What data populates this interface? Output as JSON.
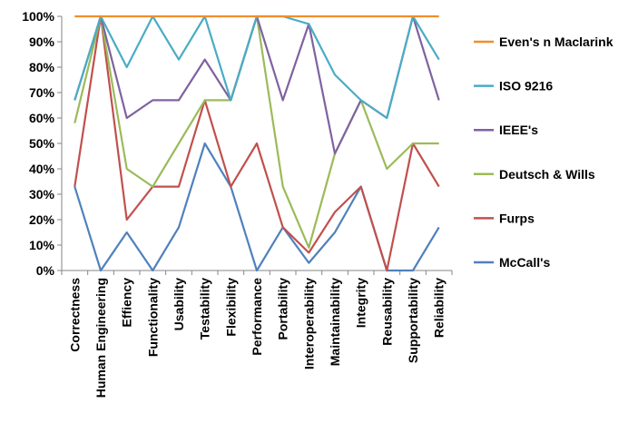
{
  "chart_data": {
    "type": "line",
    "categories": [
      "Correctness",
      "Human Engineering",
      "Effiency",
      "Functionality",
      "Usability",
      "Testability",
      "Flexibility",
      "Performance",
      "Portability",
      "Interoperability",
      "Maintainability",
      "Integrity",
      "Reusability",
      "Supportability",
      "Reliability"
    ],
    "ylim": [
      0,
      100
    ],
    "yticks": [
      "0%",
      "10%",
      "20%",
      "30%",
      "40%",
      "50%",
      "60%",
      "70%",
      "80%",
      "90%",
      "100%"
    ],
    "grid": false,
    "legend_position": "right",
    "series": [
      {
        "name": "Even's n Maclarink",
        "color": "#F28E2B",
        "values": [
          100,
          100,
          100,
          100,
          100,
          100,
          100,
          100,
          100,
          100,
          100,
          100,
          100,
          100,
          100
        ]
      },
      {
        "name": "ISO 9216",
        "color": "#4AACC5",
        "values": [
          67,
          100,
          80,
          100,
          83,
          100,
          67,
          100,
          100,
          97,
          77,
          67,
          60,
          100,
          83
        ]
      },
      {
        "name": "IEEE's",
        "color": "#7F62A0",
        "values": [
          67,
          100,
          60,
          67,
          67,
          83,
          67,
          100,
          67,
          97,
          46,
          67,
          60,
          100,
          67
        ]
      },
      {
        "name": "Deutsch & Wills",
        "color": "#9BBB59",
        "values": [
          58,
          100,
          40,
          33,
          50,
          67,
          67,
          100,
          33,
          9,
          46,
          67,
          40,
          50,
          50
        ]
      },
      {
        "name": "Furps",
        "color": "#C0504D",
        "values": [
          33,
          100,
          20,
          33,
          33,
          67,
          33,
          50,
          17,
          7,
          23,
          33,
          0,
          50,
          33
        ]
      },
      {
        "name": "McCall's",
        "color": "#4F81BD",
        "values": [
          33,
          0,
          15,
          0,
          17,
          50,
          33,
          0,
          17,
          3,
          15,
          33,
          0,
          0,
          17
        ]
      }
    ]
  }
}
